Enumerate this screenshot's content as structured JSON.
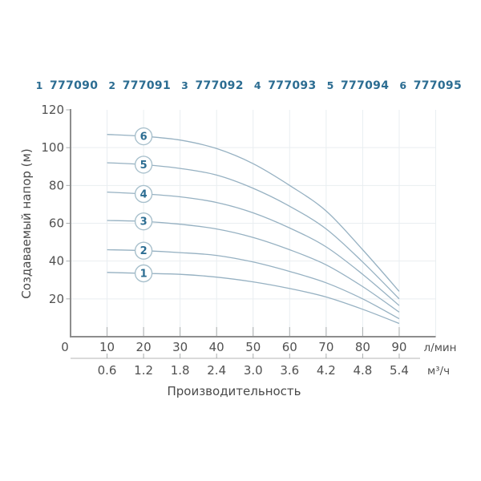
{
  "colors": {
    "background": "#ffffff",
    "curve": "#96b1c2",
    "grid": "#e9eef1",
    "axis": "#8d8d8d",
    "tick": "#a9adae",
    "secondary_axis": "#b6b6b6",
    "tick_label": "#515151",
    "axis_title": "#4a4a4a",
    "series_label": "#2c6d92",
    "marker_border": "#a8c0cc",
    "marker_fill": "#ffffff",
    "legend_circle_border": "#4d82a1"
  },
  "chart_data": {
    "type": "line",
    "title": "",
    "xlabel": "Производительность",
    "ylabel": "Создаваемый напор (м)",
    "x_unit_primary": "л/мин",
    "x_unit_secondary": "м³/ч",
    "xlim": [
      0,
      100
    ],
    "ylim": [
      0,
      120
    ],
    "grid": true,
    "legend_position": "top",
    "x_ticks_lmin": [
      "0",
      "10",
      "20",
      "30",
      "40",
      "50",
      "60",
      "70",
      "80",
      "90"
    ],
    "x_ticks_m3h": [
      "0.6",
      "1.2",
      "1.8",
      "2.4",
      "3.0",
      "3.6",
      "4.2",
      "4.8",
      "5.4"
    ],
    "y_ticks": [
      "0",
      "20",
      "40",
      "60",
      "80",
      "100",
      "120"
    ],
    "x": [
      10,
      20,
      30,
      40,
      50,
      60,
      70,
      80,
      90
    ],
    "marker_x": 20,
    "series": [
      {
        "name": "1",
        "model": "777090",
        "values": [
          34,
          33.5,
          33,
          31.5,
          29,
          25.5,
          21,
          14.5,
          7
        ]
      },
      {
        "name": "2",
        "model": "777091",
        "values": [
          46,
          45.5,
          44.5,
          43,
          39.5,
          34.5,
          28.5,
          20,
          9.5
        ]
      },
      {
        "name": "3",
        "model": "777092",
        "values": [
          61.5,
          61,
          59.5,
          57,
          52.5,
          46,
          38,
          26.5,
          13
        ]
      },
      {
        "name": "4",
        "model": "777093",
        "values": [
          76.5,
          75.5,
          74,
          71,
          65.5,
          57.5,
          47.5,
          33,
          16.5
        ]
      },
      {
        "name": "5",
        "model": "777094",
        "values": [
          92,
          91,
          89,
          85.5,
          78.5,
          69,
          57,
          39.5,
          20
        ]
      },
      {
        "name": "6",
        "model": "777095",
        "values": [
          107,
          106,
          104,
          99.5,
          91.5,
          80,
          66.5,
          46,
          24
        ]
      }
    ]
  }
}
